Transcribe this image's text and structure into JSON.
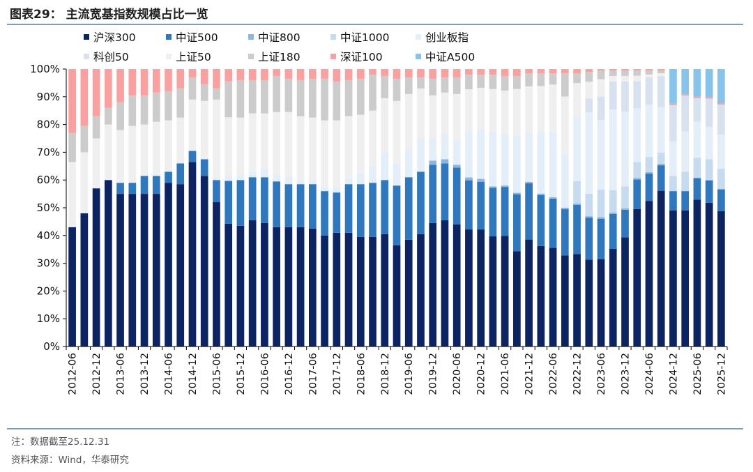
{
  "header": {
    "title": "图表29：   主流宽基指数规模占比一览"
  },
  "footer": {
    "note": "注：数据截至25.12.31",
    "source": "资料来源：Wind，华泰研究"
  },
  "chart_data": {
    "type": "bar",
    "stacked": true,
    "normalized": true,
    "title": "主流宽基指数规模占比一览",
    "xlabel": "",
    "ylabel": "",
    "ylim": [
      0,
      100
    ],
    "y_ticks": [
      "0%",
      "10%",
      "20%",
      "30%",
      "40%",
      "50%",
      "60%",
      "70%",
      "80%",
      "90%",
      "100%"
    ],
    "legend_position": "top",
    "categories": [
      "2012-06",
      "2012-09",
      "2012-12",
      "2013-03",
      "2013-06",
      "2013-09",
      "2013-12",
      "2014-03",
      "2014-06",
      "2014-09",
      "2014-12",
      "2015-03",
      "2015-06",
      "2015-09",
      "2015-12",
      "2016-03",
      "2016-06",
      "2016-09",
      "2016-12",
      "2017-03",
      "2017-06",
      "2017-09",
      "2017-12",
      "2018-03",
      "2018-06",
      "2018-09",
      "2018-12",
      "2019-03",
      "2019-06",
      "2019-09",
      "2019-12",
      "2020-03",
      "2020-06",
      "2020-09",
      "2020-12",
      "2021-03",
      "2021-06",
      "2021-09",
      "2021-12",
      "2022-03",
      "2022-06",
      "2022-09",
      "2022-12",
      "2023-03",
      "2023-06",
      "2023-09",
      "2023-12",
      "2024-03",
      "2024-06",
      "2024-09",
      "2024-12",
      "2025-03",
      "2025-06",
      "2025-09",
      "2025-12"
    ],
    "x_tick_labels": [
      "2012-06",
      "2012-12",
      "2013-06",
      "2013-12",
      "2014-06",
      "2014-12",
      "2015-06",
      "2015-12",
      "2016-06",
      "2016-12",
      "2017-06",
      "2017-12",
      "2018-06",
      "2018-12",
      "2019-06",
      "2019-12",
      "2020-06",
      "2020-12",
      "2021-06",
      "2021-12",
      "2022-06",
      "2022-12",
      "2023-06",
      "2023-12",
      "2024-06",
      "2024-12",
      "2025-06",
      "2025-12"
    ],
    "series": [
      {
        "name": "沪深300",
        "color": "#0c2461",
        "values": [
          43,
          48,
          57,
          60,
          55,
          55,
          55,
          55,
          59,
          58.5,
          66.5,
          61.5,
          52,
          44.5,
          43.5,
          45.5,
          44.5,
          43,
          43,
          43,
          42.5,
          40,
          41,
          41,
          39.5,
          39.5,
          40.5,
          36.5,
          38.5,
          40.5,
          44.5,
          45.5,
          44,
          40.5,
          40.5,
          38.5,
          38.5,
          33.5,
          37,
          35.5,
          35,
          31.5,
          33,
          31,
          30,
          35,
          39.5,
          51,
          53,
          55,
          49,
          49,
          50.5,
          51,
          49.5
        ]
      },
      {
        "name": "中证500",
        "color": "#2f78bd",
        "values": [
          0,
          0,
          0,
          0,
          4,
          4,
          6.5,
          6.5,
          4,
          7.5,
          4,
          6,
          8,
          15.5,
          16.5,
          15.5,
          16.5,
          16.5,
          15.5,
          15.5,
          16,
          16,
          14.5,
          17.5,
          19,
          19.5,
          19.5,
          21.5,
          22.5,
          22.5,
          21,
          20.5,
          20.5,
          17,
          16.5,
          17,
          17,
          20,
          19.5,
          18,
          17.5,
          16,
          17.5,
          15,
          14,
          12.5,
          10,
          11,
          10,
          9,
          7,
          7,
          7.5,
          8,
          8
        ]
      },
      {
        "name": "中证800",
        "color": "#8db6df",
        "values": [
          0,
          0,
          0,
          0,
          0,
          0,
          0,
          0,
          0,
          0,
          0,
          0,
          0,
          0,
          0,
          0,
          0,
          0,
          0,
          0,
          0,
          0,
          0,
          0,
          0,
          0,
          0,
          0,
          0,
          0,
          1.5,
          1.5,
          1,
          1,
          1,
          0.5,
          0.5,
          0.5,
          0.5,
          0.5,
          0.5,
          0.5,
          0.5,
          0.5,
          0.5,
          0.5,
          0.5,
          0.5,
          0.5,
          0.5,
          0,
          0,
          0,
          0,
          0
        ]
      },
      {
        "name": "中证1000",
        "color": "#c6dbef",
        "values": [
          0,
          0,
          0,
          0,
          0,
          0,
          0,
          0,
          0,
          0,
          0,
          0,
          0,
          0,
          0,
          0,
          0,
          0,
          0,
          0,
          0,
          0,
          0,
          0,
          0,
          0,
          0,
          0,
          0,
          0,
          0,
          0,
          0,
          0,
          0,
          0,
          0,
          0,
          0,
          0,
          0,
          0,
          8,
          8,
          9.5,
          8,
          8,
          6,
          5.5,
          4,
          5.5,
          7,
          7,
          7.5,
          7.5
        ]
      },
      {
        "name": "创业板指",
        "color": "#e4eef9",
        "values": [
          0,
          0,
          0,
          0,
          0,
          0,
          0,
          0,
          0,
          0,
          0,
          0,
          1,
          2,
          2,
          2,
          3,
          2.5,
          3,
          1.5,
          1,
          1.5,
          2,
          2,
          4,
          6,
          10,
          8,
          10,
          12,
          8,
          9,
          8.5,
          16,
          17,
          19,
          18,
          20,
          17,
          21.5,
          23,
          18.5,
          23,
          29,
          24,
          29,
          27,
          20,
          19,
          16,
          12.5,
          14.5,
          12.5,
          11.5,
          12.5
        ]
      },
      {
        "name": "科创50",
        "color": "#d7e1f0",
        "values": [
          0,
          0,
          0,
          0,
          0,
          0,
          0,
          0,
          0,
          0,
          0,
          0,
          0,
          0,
          0,
          0,
          0,
          0,
          0,
          0,
          0,
          0,
          0,
          0,
          0,
          0,
          0,
          0,
          0,
          0,
          0,
          0,
          0,
          0,
          0,
          0,
          0,
          0,
          0,
          0,
          0,
          0,
          0,
          5,
          8,
          10,
          11,
          10,
          10,
          11,
          13,
          13,
          8,
          10,
          11
        ]
      },
      {
        "name": "上证50",
        "color": "#efefef",
        "values": [
          23.5,
          22,
          18,
          20,
          19,
          20.5,
          18.5,
          19.5,
          18.5,
          16.5,
          18.5,
          21,
          28,
          21,
          20.5,
          21,
          20,
          22.5,
          23,
          23,
          23,
          24,
          24,
          22.5,
          21,
          20,
          19.5,
          22.5,
          20,
          18,
          15.5,
          15,
          17,
          14.5,
          14.5,
          15,
          15,
          16.5,
          16,
          16.5,
          17,
          20,
          12,
          6,
          6,
          2,
          2,
          2,
          1,
          1,
          0,
          0,
          0,
          0,
          0
        ]
      },
      {
        "name": "上证180",
        "color": "#cccccc",
        "values": [
          10.5,
          9.5,
          8,
          6,
          10,
          11,
          10.5,
          10.5,
          10.5,
          10.5,
          8,
          6,
          4,
          13,
          13.5,
          12,
          12,
          13,
          12,
          13,
          14,
          15,
          14,
          13,
          13,
          13,
          8,
          8,
          6,
          4,
          6,
          5.5,
          6,
          5,
          4.5,
          5,
          5,
          4.5,
          4.5,
          4.5,
          4,
          8,
          3.5,
          3.5,
          3,
          2,
          2,
          2,
          1.5,
          1,
          0,
          0,
          0,
          0,
          0
        ]
      },
      {
        "name": "深证100",
        "color": "#f9a1a1",
        "values": [
          23,
          20.5,
          17,
          14,
          12,
          9.5,
          9.5,
          8.5,
          8,
          7,
          3,
          5.5,
          7,
          4.5,
          4,
          4,
          4,
          2.5,
          3.5,
          4,
          3.5,
          3.5,
          4.5,
          4,
          3.5,
          2,
          2.5,
          3.5,
          3,
          3,
          3.5,
          3,
          3,
          2,
          2,
          2,
          2.5,
          2.5,
          1.5,
          1.5,
          1.5,
          1.5,
          1.5,
          1,
          0.5,
          0.5,
          0.5,
          0.5,
          0.5,
          0.5,
          0.5,
          0.5,
          0.5,
          0.5,
          0.5
        ]
      },
      {
        "name": "中证A500",
        "color": "#86c4ec",
        "values": [
          0,
          0,
          0,
          0,
          0,
          0,
          0,
          0,
          0,
          0,
          0,
          0,
          0,
          0,
          0,
          0,
          0,
          0,
          0,
          0,
          0,
          0,
          0,
          0,
          0,
          0,
          0,
          0,
          0,
          0,
          0,
          0,
          0,
          0,
          0,
          0,
          0,
          0,
          0,
          0,
          0,
          0,
          0,
          0,
          0,
          0,
          0,
          0,
          0,
          0,
          12.5,
          9,
          9.5,
          10,
          12.5
        ]
      }
    ]
  }
}
